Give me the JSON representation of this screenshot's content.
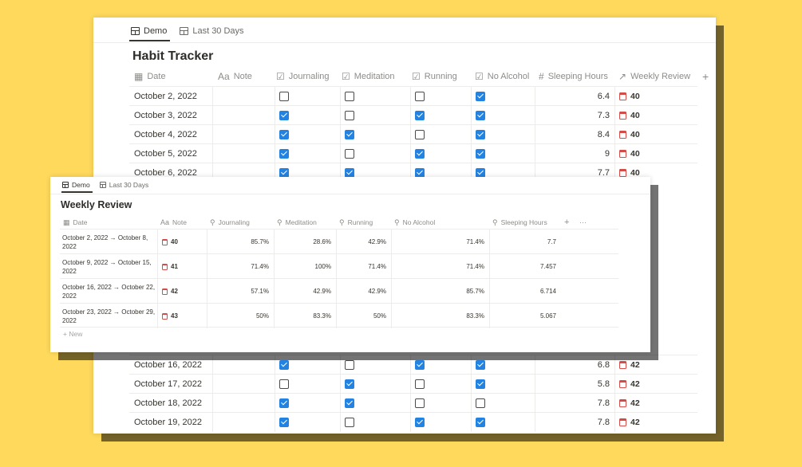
{
  "back": {
    "tabs": [
      {
        "label": "Demo",
        "active": true
      },
      {
        "label": "Last 30 Days",
        "active": false
      }
    ],
    "title": "Habit Tracker",
    "columns": [
      {
        "glyph": "▦",
        "label": "Date"
      },
      {
        "glyph": "Aa",
        "label": "Note"
      },
      {
        "glyph": "☑",
        "label": "Journaling"
      },
      {
        "glyph": "☑",
        "label": "Meditation"
      },
      {
        "glyph": "☑",
        "label": "Running"
      },
      {
        "glyph": "☑",
        "label": "No Alcohol"
      },
      {
        "glyph": "#",
        "label": "Sleeping Hours"
      },
      {
        "glyph": "↗",
        "label": "Weekly Review"
      }
    ],
    "add_icon": "+",
    "rows": [
      {
        "date": "October 2, 2022",
        "j": false,
        "m": false,
        "r": false,
        "a": true,
        "sleep": "6.4",
        "review": "40"
      },
      {
        "date": "October 3, 2022",
        "j": true,
        "m": false,
        "r": true,
        "a": true,
        "sleep": "7.3",
        "review": "40"
      },
      {
        "date": "October 4, 2022",
        "j": true,
        "m": true,
        "r": false,
        "a": true,
        "sleep": "8.4",
        "review": "40"
      },
      {
        "date": "October 5, 2022",
        "j": true,
        "m": false,
        "r": true,
        "a": true,
        "sleep": "9",
        "review": "40"
      },
      {
        "date": "October 6, 2022",
        "j": true,
        "m": true,
        "r": true,
        "a": true,
        "sleep": "7.7",
        "review": "40"
      }
    ],
    "bottom_rows": [
      {
        "date": "October 16, 2022",
        "j": true,
        "m": false,
        "r": true,
        "a": true,
        "sleep": "6.8",
        "review": "42"
      },
      {
        "date": "October 17, 2022",
        "j": false,
        "m": true,
        "r": false,
        "a": true,
        "sleep": "5.8",
        "review": "42"
      },
      {
        "date": "October 18, 2022",
        "j": true,
        "m": true,
        "r": false,
        "a": false,
        "sleep": "7.8",
        "review": "42"
      },
      {
        "date": "October 19, 2022",
        "j": true,
        "m": false,
        "r": true,
        "a": true,
        "sleep": "7.8",
        "review": "42"
      }
    ]
  },
  "front": {
    "tabs": [
      {
        "label": "Demo",
        "active": true
      },
      {
        "label": "Last 30 Days",
        "active": false
      }
    ],
    "title": "Weekly Review",
    "columns": [
      {
        "glyph": "▦",
        "label": "Date"
      },
      {
        "glyph": "Aa",
        "label": "Note"
      },
      {
        "glyph": "⚲",
        "label": "Journaling"
      },
      {
        "glyph": "⚲",
        "label": "Meditation"
      },
      {
        "glyph": "⚲",
        "label": "Running"
      },
      {
        "glyph": "⚲",
        "label": "No Alcohol"
      },
      {
        "glyph": "⚲",
        "label": "Sleeping Hours"
      }
    ],
    "add_icon": "+",
    "more_icon": "···",
    "rows": [
      {
        "date": "October 2, 2022 → October 8, 2022",
        "note": "40",
        "journaling": "85.7%",
        "meditation": "28.6%",
        "running": "42.9%",
        "no_alcohol": "71.4%",
        "sleep": "7.7"
      },
      {
        "date": "October 9, 2022 → October 15, 2022",
        "note": "41",
        "journaling": "71.4%",
        "meditation": "100%",
        "running": "71.4%",
        "no_alcohol": "71.4%",
        "sleep": "7.457"
      },
      {
        "date": "October 16, 2022 → October 22, 2022",
        "note": "42",
        "journaling": "57.1%",
        "meditation": "42.9%",
        "running": "42.9%",
        "no_alcohol": "85.7%",
        "sleep": "6.714"
      },
      {
        "date": "October 23, 2022 → October 29, 2022",
        "note": "43",
        "journaling": "50%",
        "meditation": "83.3%",
        "running": "50%",
        "no_alcohol": "83.3%",
        "sleep": "5.067"
      }
    ],
    "new_label": "+ New"
  },
  "colors": {
    "background": "#ffd95c",
    "checkbox_on": "#2383e2",
    "relation_icon": "#d44c47"
  }
}
